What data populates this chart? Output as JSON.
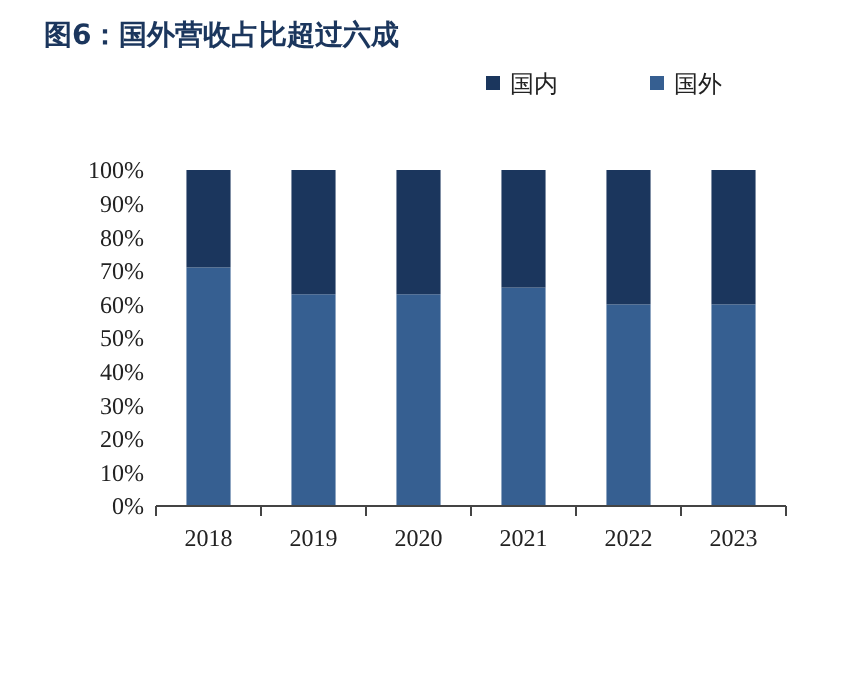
{
  "chart_data": {
    "type": "bar",
    "title": "图6：国外营收占比超过六成",
    "stacked": true,
    "legend": "top right",
    "categories": [
      "2018",
      "2019",
      "2020",
      "2021",
      "2022",
      "2023"
    ],
    "series": [
      {
        "name": "国外",
        "color": "#365f91",
        "values": [
          71,
          63,
          63,
          65,
          60,
          60
        ]
      },
      {
        "name": "国内",
        "color": "#1b365d",
        "values": [
          29,
          37,
          37,
          35,
          40,
          40
        ]
      }
    ],
    "ylim": [
      0,
      100
    ],
    "yticks": [
      {
        "value": 0,
        "label": "0%"
      },
      {
        "value": 10,
        "label": "10%"
      },
      {
        "value": 20,
        "label": "20%"
      },
      {
        "value": 30,
        "label": "30%"
      },
      {
        "value": 40,
        "label": "40%"
      },
      {
        "value": 50,
        "label": "50%"
      },
      {
        "value": 60,
        "label": "60%"
      },
      {
        "value": 70,
        "label": "70%"
      },
      {
        "value": 80,
        "label": "80%"
      },
      {
        "value": 90,
        "label": "90%"
      },
      {
        "value": 100,
        "label": "100%"
      }
    ]
  }
}
